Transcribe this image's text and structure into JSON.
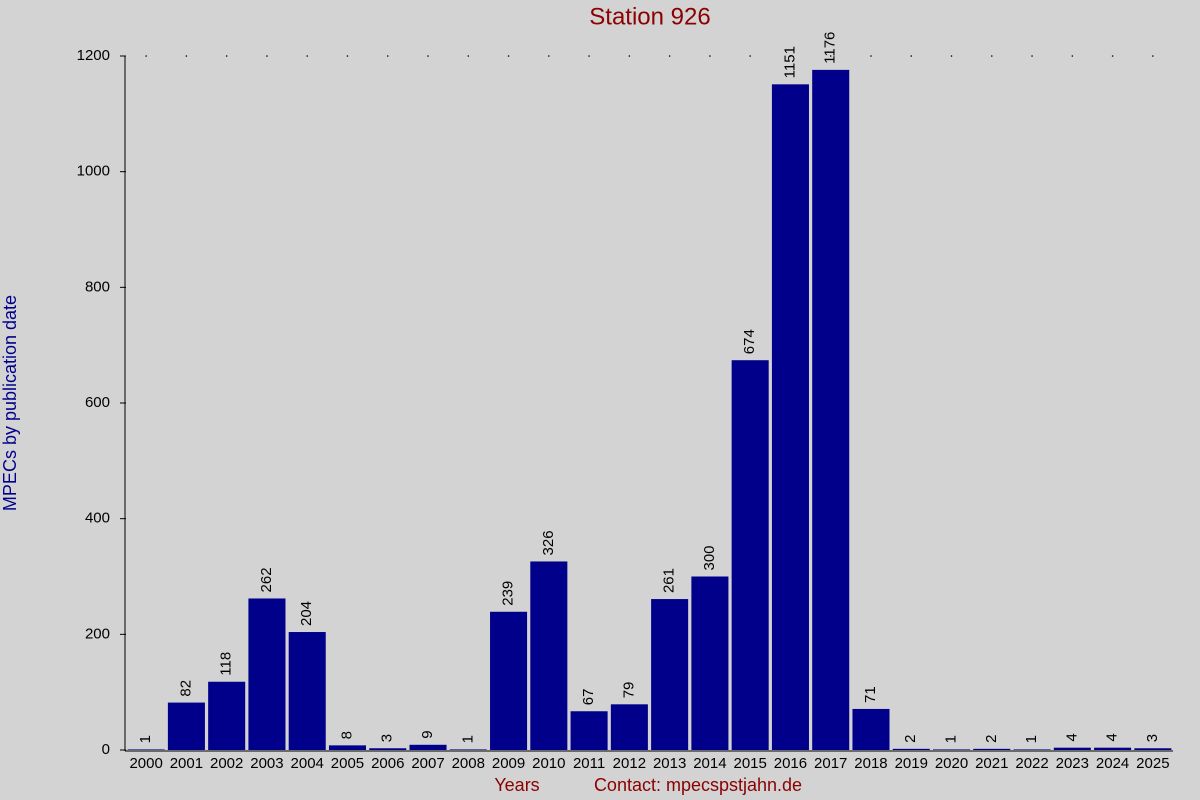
{
  "chart_data": {
    "type": "bar",
    "title": "Station 926",
    "x_label": "Years",
    "y_label": "MPECs by publication date",
    "annotation": "Contact: mpecspstjahn.de",
    "categories": [
      "2000",
      "2001",
      "2002",
      "2003",
      "2004",
      "2005",
      "2006",
      "2007",
      "2008",
      "2009",
      "2010",
      "2011",
      "2012",
      "2013",
      "2014",
      "2015",
      "2016",
      "2017",
      "2018",
      "2019",
      "2020",
      "2021",
      "2022",
      "2023",
      "2024",
      "2025"
    ],
    "values": [
      1,
      82,
      118,
      262,
      204,
      8,
      3,
      9,
      1,
      239,
      326,
      67,
      79,
      261,
      300,
      674,
      1151,
      1176,
      71,
      2,
      1,
      2,
      1,
      4,
      4,
      3
    ],
    "color": "#00008b",
    "ylim": [
      0,
      1200
    ],
    "yticks": [
      0,
      200,
      400,
      600,
      800,
      1000,
      1200
    ]
  }
}
